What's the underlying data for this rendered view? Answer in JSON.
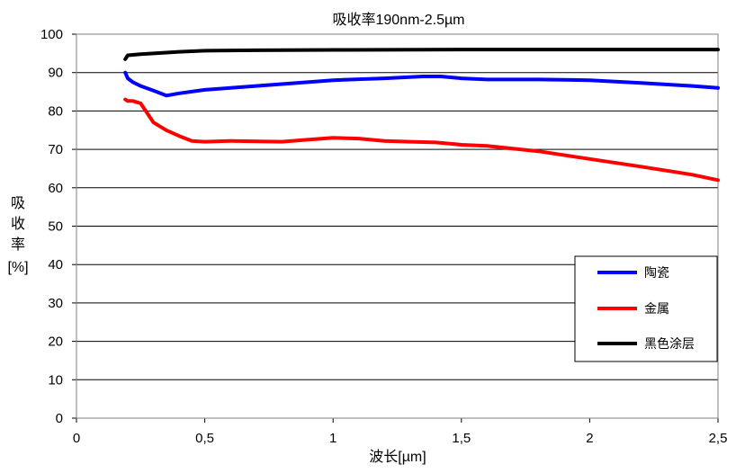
{
  "chart_data": {
    "type": "line",
    "title": "吸收率190nm-2.5µm",
    "xlabel": "波长[µm]",
    "ylabel_lines": [
      "吸",
      "收",
      "率",
      "[%]"
    ],
    "xlim": [
      0,
      2.5
    ],
    "ylim": [
      0,
      100
    ],
    "x_ticks": [
      0,
      0.5,
      1,
      1.5,
      2,
      2.5
    ],
    "x_tick_labels": [
      "0",
      "0,5",
      "1",
      "1,5",
      "2",
      "2,5"
    ],
    "y_ticks": [
      0,
      10,
      20,
      30,
      40,
      50,
      60,
      70,
      80,
      90,
      100
    ],
    "y_tick_labels": [
      "0",
      "10",
      "20",
      "30",
      "40",
      "50",
      "60",
      "70",
      "80",
      "90",
      "100"
    ],
    "grid": "horizontal",
    "legend_position": "right",
    "series": [
      {
        "name": "陶瓷",
        "color": "#0000ff",
        "points": [
          [
            0.19,
            90
          ],
          [
            0.2,
            88.5
          ],
          [
            0.22,
            87.5
          ],
          [
            0.25,
            86.5
          ],
          [
            0.3,
            85.3
          ],
          [
            0.35,
            84.0
          ],
          [
            0.4,
            84.6
          ],
          [
            0.5,
            85.5
          ],
          [
            0.6,
            86.0
          ],
          [
            0.8,
            87.0
          ],
          [
            1.0,
            88.0
          ],
          [
            1.2,
            88.5
          ],
          [
            1.35,
            89.0
          ],
          [
            1.42,
            89.0
          ],
          [
            1.5,
            88.5
          ],
          [
            1.6,
            88.2
          ],
          [
            1.8,
            88.2
          ],
          [
            2.0,
            88.0
          ],
          [
            2.2,
            87.3
          ],
          [
            2.4,
            86.5
          ],
          [
            2.5,
            86.0
          ]
        ]
      },
      {
        "name": "金属",
        "color": "#ff0000",
        "points": [
          [
            0.19,
            83.0
          ],
          [
            0.2,
            82.6
          ],
          [
            0.22,
            82.6
          ],
          [
            0.25,
            82.0
          ],
          [
            0.28,
            79.0
          ],
          [
            0.3,
            77.0
          ],
          [
            0.35,
            75.0
          ],
          [
            0.4,
            73.5
          ],
          [
            0.45,
            72.2
          ],
          [
            0.5,
            72.0
          ],
          [
            0.6,
            72.2
          ],
          [
            0.8,
            72.0
          ],
          [
            0.9,
            72.5
          ],
          [
            1.0,
            73.0
          ],
          [
            1.1,
            72.8
          ],
          [
            1.2,
            72.2
          ],
          [
            1.3,
            72.0
          ],
          [
            1.4,
            71.8
          ],
          [
            1.5,
            71.2
          ],
          [
            1.6,
            70.9
          ],
          [
            1.8,
            69.5
          ],
          [
            2.0,
            67.5
          ],
          [
            2.2,
            65.5
          ],
          [
            2.4,
            63.4
          ],
          [
            2.5,
            62.0
          ]
        ]
      },
      {
        "name": "黑色涂层",
        "color": "#000000",
        "points": [
          [
            0.19,
            93.5
          ],
          [
            0.2,
            94.5
          ],
          [
            0.25,
            94.8
          ],
          [
            0.3,
            95.0
          ],
          [
            0.4,
            95.4
          ],
          [
            0.5,
            95.7
          ],
          [
            0.7,
            95.8
          ],
          [
            1.0,
            95.9
          ],
          [
            1.5,
            96.0
          ],
          [
            2.0,
            96.0
          ],
          [
            2.5,
            96.0
          ]
        ]
      }
    ]
  }
}
